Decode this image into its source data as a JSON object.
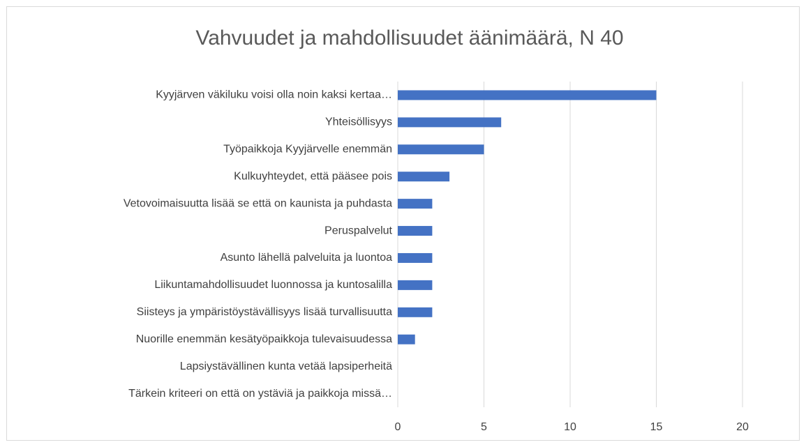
{
  "chart_data": {
    "type": "bar",
    "orientation": "horizontal",
    "title": "Vahvuudet ja mahdollisuudet äänimäärä, N 40",
    "categories": [
      "Kyyjärven väkiluku voisi olla noin kaksi kertaa…",
      "Yhteisöllisyys",
      "Työpaikkoja Kyyjärvelle enemmän",
      "Kulkuyhteydet, että pääsee pois",
      "Vetovoimaisuutta lisää se että on kaunista ja puhdasta",
      "Peruspalvelut",
      "Asunto lähellä palveluita ja luontoa",
      "Liikuntamahdollisuudet luonnossa ja kuntosalilla",
      "Siisteys ja ympäristöystävällisyys lisää turvallisuutta",
      "Nuorille enemmän kesätyöpaikkoja tulevaisuudessa",
      "Lapsiystävällinen kunta vetää lapsiperheitä",
      "Tärkein kriteeri on että on ystäviä ja paikkoja missä…"
    ],
    "values": [
      15,
      6,
      5,
      3,
      2,
      2,
      2,
      2,
      2,
      1,
      0,
      0
    ],
    "color": "#4472c4",
    "xlim": [
      0,
      20
    ],
    "xticks": [
      0,
      5,
      10,
      15,
      20
    ],
    "grid": true
  }
}
